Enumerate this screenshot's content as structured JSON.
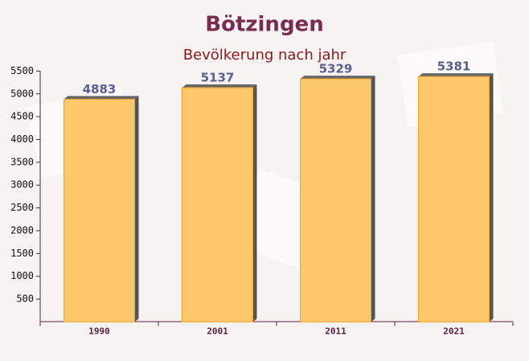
{
  "chart_data": {
    "type": "bar",
    "title": "Bötzingen",
    "subtitle": "Bevölkerung nach jahr",
    "categories": [
      "1990",
      "2001",
      "2011",
      "2021"
    ],
    "values": [
      4883,
      5137,
      5329,
      5381
    ],
    "color": "#fdc86a",
    "ylim": [
      0,
      5500
    ],
    "yticks": [
      500,
      1000,
      1500,
      2000,
      2500,
      3000,
      3500,
      4000,
      4500,
      5000,
      5500
    ],
    "grid": false
  }
}
